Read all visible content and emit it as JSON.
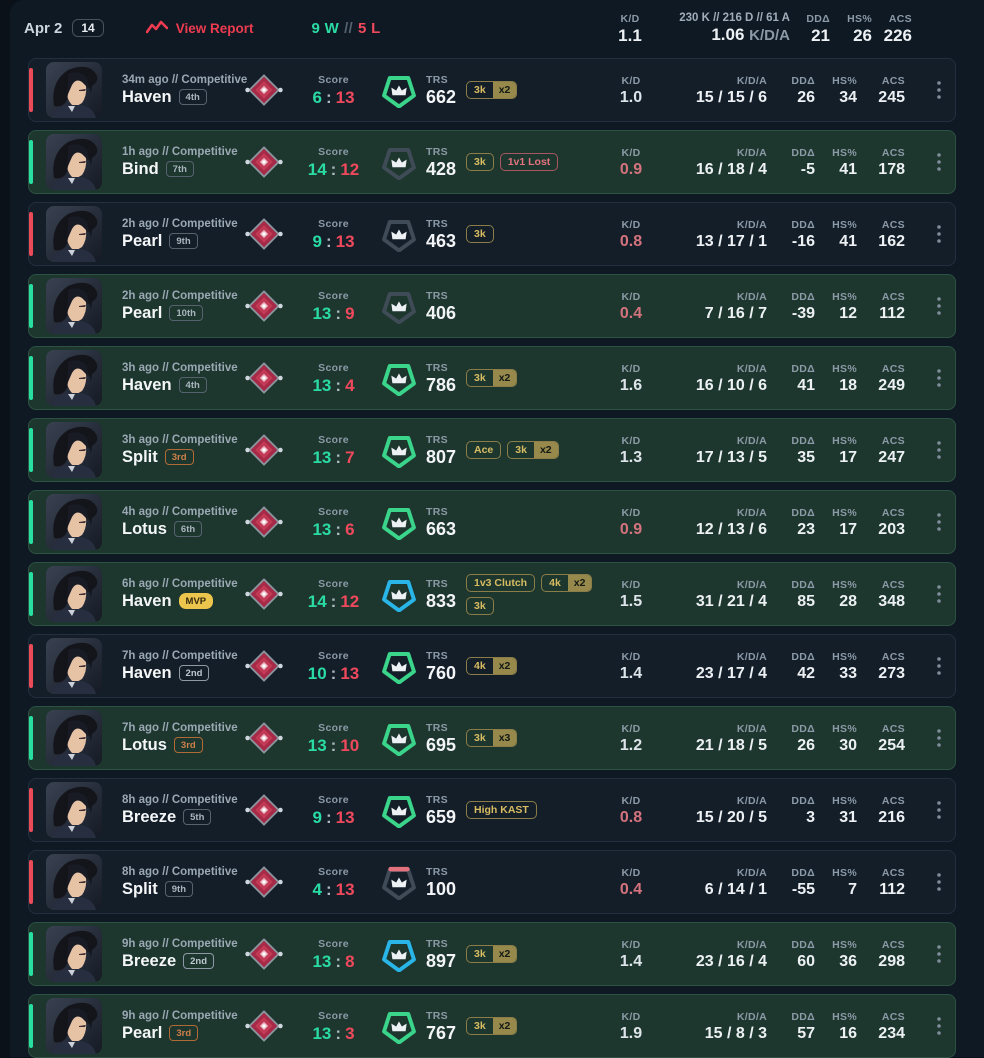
{
  "header": {
    "date": "Apr 2",
    "match_count": "14",
    "view_report": "View Report",
    "record": {
      "wins": "9 W",
      "sep": "//",
      "losses": "5 L"
    },
    "stats": {
      "kd": "1.1",
      "kda_detail": "230 K // 216 D // 61 A",
      "kda_ratio": "1.06",
      "kda_ratio_label": "K/D/A",
      "dd": "21",
      "hs": "26",
      "acs": "226"
    }
  },
  "labels": {
    "score": "Score",
    "score_sep": ":",
    "trs": "TRS",
    "kd": "K/D",
    "kda": "K/D/A",
    "dd": "DDΔ",
    "hs": "HS%",
    "acs": "ACS"
  },
  "colors": {
    "win_accent": "#27dfa0",
    "loss_accent": "#eb4a57",
    "green_text": "#2adca4",
    "red_text": "#f0495d",
    "gold_badge": "#d8bc62",
    "trs_green": "#3bd48b",
    "trs_blue": "#2ab5e8",
    "trs_gray": "#3f4b56"
  },
  "matches": [
    {
      "result": "loss",
      "meta": "34m ago // Competitive",
      "map": "Haven",
      "placement": "4th",
      "tier": "default",
      "score_us": "6",
      "score_them": "13",
      "trs": "662",
      "trs_tier": "green",
      "badges": [
        {
          "label": "3k",
          "mult": "x2",
          "style": "gold"
        }
      ],
      "kd": "1.0",
      "kda": "15 / 15 / 6",
      "dd": "26",
      "hs": "34",
      "acs": "245"
    },
    {
      "result": "win",
      "meta": "1h ago // Competitive",
      "map": "Bind",
      "placement": "7th",
      "tier": "default",
      "score_us": "14",
      "score_them": "12",
      "trs": "428",
      "trs_tier": "gray",
      "badges": [
        {
          "label": "3k",
          "style": "gold"
        },
        {
          "label": "1v1 Lost",
          "style": "red"
        }
      ],
      "kd": "0.9",
      "kda": "16 / 18 / 4",
      "dd": "-5",
      "hs": "41",
      "acs": "178"
    },
    {
      "result": "loss",
      "meta": "2h ago // Competitive",
      "map": "Pearl",
      "placement": "9th",
      "tier": "default",
      "score_us": "9",
      "score_them": "13",
      "trs": "463",
      "trs_tier": "gray",
      "badges": [
        {
          "label": "3k",
          "style": "gold"
        }
      ],
      "kd": "0.8",
      "kda": "13 / 17 / 1",
      "dd": "-16",
      "hs": "41",
      "acs": "162"
    },
    {
      "result": "win",
      "meta": "2h ago // Competitive",
      "map": "Pearl",
      "placement": "10th",
      "tier": "default",
      "score_us": "13",
      "score_them": "9",
      "trs": "406",
      "trs_tier": "gray",
      "badges": [],
      "kd": "0.4",
      "kda": "7 / 16 / 7",
      "dd": "-39",
      "hs": "12",
      "acs": "112"
    },
    {
      "result": "win",
      "meta": "3h ago // Competitive",
      "map": "Haven",
      "placement": "4th",
      "tier": "default",
      "score_us": "13",
      "score_them": "4",
      "trs": "786",
      "trs_tier": "green",
      "badges": [
        {
          "label": "3k",
          "mult": "x2",
          "style": "gold"
        }
      ],
      "kd": "1.6",
      "kda": "16 / 10 / 6",
      "dd": "41",
      "hs": "18",
      "acs": "249"
    },
    {
      "result": "win",
      "meta": "3h ago // Competitive",
      "map": "Split",
      "placement": "3rd",
      "tier": "bronze",
      "score_us": "13",
      "score_them": "7",
      "trs": "807",
      "trs_tier": "green",
      "badges": [
        {
          "label": "Ace",
          "style": "gold"
        },
        {
          "label": "3k",
          "mult": "x2",
          "style": "gold"
        }
      ],
      "kd": "1.3",
      "kda": "17 / 13 / 5",
      "dd": "35",
      "hs": "17",
      "acs": "247"
    },
    {
      "result": "win",
      "meta": "4h ago // Competitive",
      "map": "Lotus",
      "placement": "6th",
      "tier": "default",
      "score_us": "13",
      "score_them": "6",
      "trs": "663",
      "trs_tier": "green",
      "badges": [],
      "kd": "0.9",
      "kda": "12 / 13 / 6",
      "dd": "23",
      "hs": "17",
      "acs": "203"
    },
    {
      "result": "win",
      "meta": "6h ago // Competitive",
      "map": "Haven",
      "placement": "MVP",
      "tier": "mvp",
      "score_us": "14",
      "score_them": "12",
      "trs": "833",
      "trs_tier": "blue",
      "badges": [
        {
          "label": "1v3 Clutch",
          "style": "gold"
        },
        {
          "label": "4k",
          "mult": "x2",
          "style": "gold"
        },
        {
          "label": "3k",
          "style": "gold"
        }
      ],
      "kd": "1.5",
      "kda": "31 / 21 / 4",
      "dd": "85",
      "hs": "28",
      "acs": "348"
    },
    {
      "result": "loss",
      "meta": "7h ago // Competitive",
      "map": "Haven",
      "placement": "2nd",
      "tier": "silver",
      "score_us": "10",
      "score_them": "13",
      "trs": "760",
      "trs_tier": "green",
      "badges": [
        {
          "label": "4k",
          "mult": "x2",
          "style": "gold"
        }
      ],
      "kd": "1.4",
      "kda": "23 / 17 / 4",
      "dd": "42",
      "hs": "33",
      "acs": "273"
    },
    {
      "result": "win",
      "meta": "7h ago // Competitive",
      "map": "Lotus",
      "placement": "3rd",
      "tier": "bronze",
      "score_us": "13",
      "score_them": "10",
      "trs": "695",
      "trs_tier": "green",
      "badges": [
        {
          "label": "3k",
          "mult": "x3",
          "style": "gold"
        }
      ],
      "kd": "1.2",
      "kda": "21 / 18 / 5",
      "dd": "26",
      "hs": "30",
      "acs": "254"
    },
    {
      "result": "loss",
      "meta": "8h ago // Competitive",
      "map": "Breeze",
      "placement": "5th",
      "tier": "default",
      "score_us": "9",
      "score_them": "13",
      "trs": "659",
      "trs_tier": "green",
      "badges": [
        {
          "label": "High KAST",
          "style": "gold"
        }
      ],
      "kd": "0.8",
      "kda": "15 / 20 / 5",
      "dd": "3",
      "hs": "31",
      "acs": "216"
    },
    {
      "result": "loss",
      "meta": "8h ago // Competitive",
      "map": "Split",
      "placement": "9th",
      "tier": "default",
      "score_us": "4",
      "score_them": "13",
      "trs": "100",
      "trs_tier": "low",
      "badges": [],
      "kd": "0.4",
      "kda": "6 / 14 / 1",
      "dd": "-55",
      "hs": "7",
      "acs": "112"
    },
    {
      "result": "win",
      "meta": "9h ago // Competitive",
      "map": "Breeze",
      "placement": "2nd",
      "tier": "silver",
      "score_us": "13",
      "score_them": "8",
      "trs": "897",
      "trs_tier": "blue",
      "badges": [
        {
          "label": "3k",
          "mult": "x2",
          "style": "gold"
        }
      ],
      "kd": "1.4",
      "kda": "23 / 16 / 4",
      "dd": "60",
      "hs": "36",
      "acs": "298"
    },
    {
      "result": "win",
      "meta": "9h ago // Competitive",
      "map": "Pearl",
      "placement": "3rd",
      "tier": "bronze",
      "score_us": "13",
      "score_them": "3",
      "trs": "767",
      "trs_tier": "green",
      "badges": [
        {
          "label": "3k",
          "mult": "x2",
          "style": "gold"
        }
      ],
      "kd": "1.9",
      "kda": "15 / 8 / 3",
      "dd": "57",
      "hs": "16",
      "acs": "234"
    }
  ]
}
